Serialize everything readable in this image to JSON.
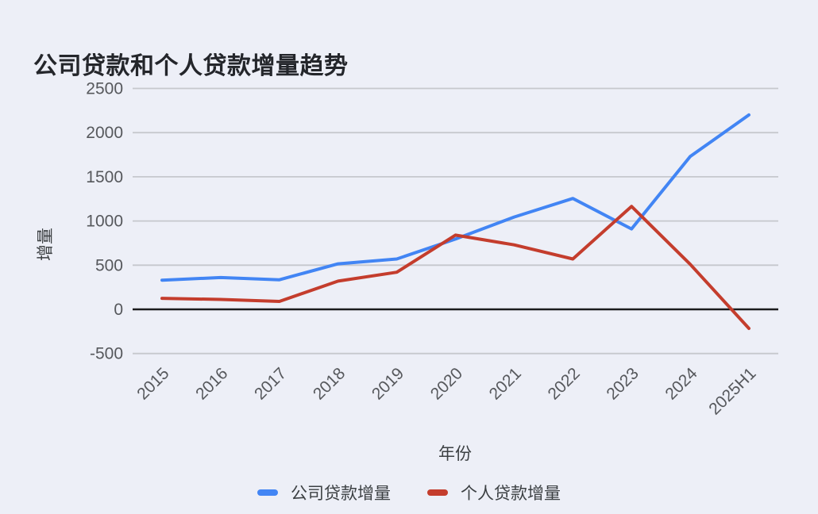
{
  "header": {
    "title": "公司贷款和个人贷款增量趋势"
  },
  "chart_data": {
    "type": "line",
    "title": "公司贷款和个人贷款增量趋势",
    "xlabel": "年份",
    "ylabel": "增量",
    "categories": [
      "2015",
      "2016",
      "2017",
      "2018",
      "2019",
      "2020",
      "2021",
      "2022",
      "2023",
      "2024",
      "2025H1"
    ],
    "series": [
      {
        "name": "公司贷款增量",
        "color": "#4285f4",
        "values": [
          330,
          360,
          335,
          515,
          570,
          795,
          1045,
          1255,
          910,
          1730,
          2200
        ]
      },
      {
        "name": "个人贷款增量",
        "color": "#c43d2d",
        "values": [
          125,
          112,
          90,
          320,
          420,
          840,
          730,
          570,
          1165,
          510,
          -215
        ]
      }
    ],
    "ylim": [
      -500,
      2500
    ],
    "ytick_step": 500,
    "yticks": [
      2500,
      2000,
      1500,
      1000,
      500,
      0,
      -500
    ],
    "grid": true,
    "zero_line": true,
    "legend_position": "bottom",
    "colors": {
      "background": "#edeff7",
      "gridline": "#c6c8cd",
      "zero_line": "#1b1c1e",
      "tick_label": "#56585c",
      "axis_title": "#3c4043",
      "title": "#24262b"
    }
  }
}
